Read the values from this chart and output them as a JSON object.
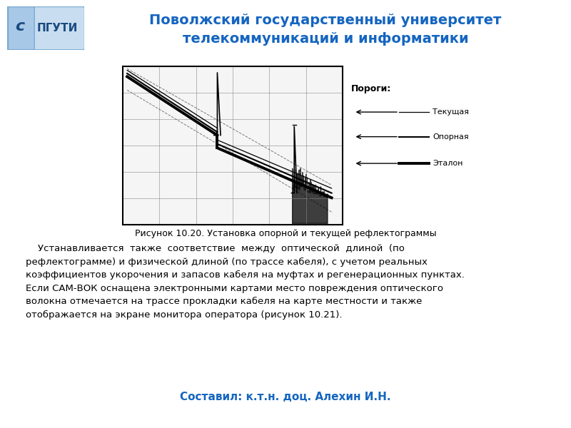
{
  "title_line1": "Поволжский государственный университет",
  "title_line2": "телекоммуникаций и информатики",
  "title_color": "#1565C0",
  "header_line_color": "#2255AA",
  "bg_color": "#FFFFFF",
  "fig_caption": "Рисунок 10.20. Установка опорной и текущей рефлектограммы",
  "footer_text": "Составил: к.т.н. доц. Алехин И.Н.",
  "footer_color": "#1565C0",
  "footer_line_color": "#2255AA",
  "legend_title": "Пороги:",
  "legend_items": [
    "Текущая",
    "Опорная",
    "Эталон"
  ],
  "plot_bg": "#FFFFFF",
  "plot_border": "#000000",
  "logo_bg": "#c8ddf0",
  "logo_border": "#7aaad0",
  "logo_text_color": "#1a4a80"
}
